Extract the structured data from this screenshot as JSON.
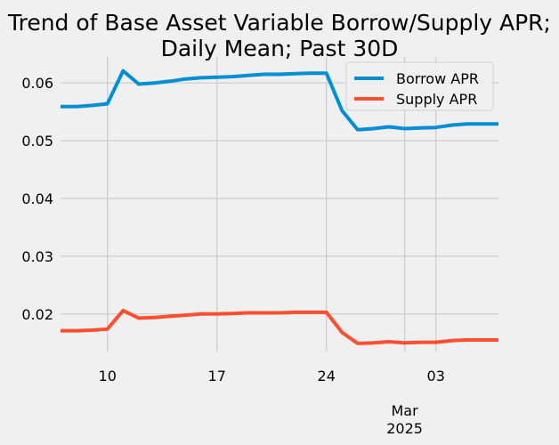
{
  "chart_data": {
    "type": "line",
    "title": "Trend of Base Asset Variable Borrow/Supply APR;",
    "subtitle": "Daily Mean; Past 30D",
    "xlabel": "",
    "ylabel": "",
    "xlim": [
      "2025-02-07",
      "2025-03-07"
    ],
    "ylim": [
      0.0135,
      0.0645
    ],
    "x_ticks": [
      {
        "date": "2025-02-10",
        "label": "10"
      },
      {
        "date": "2025-02-17",
        "label": "17"
      },
      {
        "date": "2025-02-24",
        "label": "24"
      },
      {
        "date": "2025-03-03",
        "label": "03"
      }
    ],
    "x_major_tick": {
      "date": "2025-03-01",
      "label": "Mar",
      "sublabel": "2025"
    },
    "y_ticks": [
      0.02,
      0.03,
      0.04,
      0.05,
      0.06
    ],
    "y_tick_labels": [
      "0.02",
      "0.03",
      "0.04",
      "0.05",
      "0.06"
    ],
    "grid": true,
    "legend_position": "top-right",
    "x": [
      "2025-02-07",
      "2025-02-08",
      "2025-02-09",
      "2025-02-10",
      "2025-02-11",
      "2025-02-12",
      "2025-02-13",
      "2025-02-14",
      "2025-02-15",
      "2025-02-16",
      "2025-02-17",
      "2025-02-18",
      "2025-02-19",
      "2025-02-20",
      "2025-02-21",
      "2025-02-22",
      "2025-02-23",
      "2025-02-24",
      "2025-02-25",
      "2025-02-26",
      "2025-02-27",
      "2025-02-28",
      "2025-03-01",
      "2025-03-02",
      "2025-03-03",
      "2025-03-04",
      "2025-03-05",
      "2025-03-06",
      "2025-03-07"
    ],
    "series": [
      {
        "name": "Borrow APR",
        "color": "#008fd5",
        "values": [
          0.0559,
          0.0559,
          0.0561,
          0.0564,
          0.0621,
          0.0598,
          0.06,
          0.0603,
          0.0607,
          0.0609,
          0.061,
          0.0611,
          0.0613,
          0.0615,
          0.0615,
          0.0616,
          0.0617,
          0.0617,
          0.0552,
          0.0519,
          0.0521,
          0.0524,
          0.0521,
          0.0522,
          0.0523,
          0.0527,
          0.0529,
          0.0529,
          0.0529
        ]
      },
      {
        "name": "Supply APR",
        "color": "#fc4f30",
        "values": [
          0.0171,
          0.0171,
          0.0172,
          0.0174,
          0.0206,
          0.0193,
          0.0194,
          0.0196,
          0.0198,
          0.02,
          0.02,
          0.0201,
          0.0202,
          0.0202,
          0.0202,
          0.0203,
          0.0203,
          0.0203,
          0.0168,
          0.0149,
          0.015,
          0.0152,
          0.015,
          0.0151,
          0.0151,
          0.0154,
          0.0155,
          0.0155,
          0.0155
        ]
      }
    ]
  }
}
